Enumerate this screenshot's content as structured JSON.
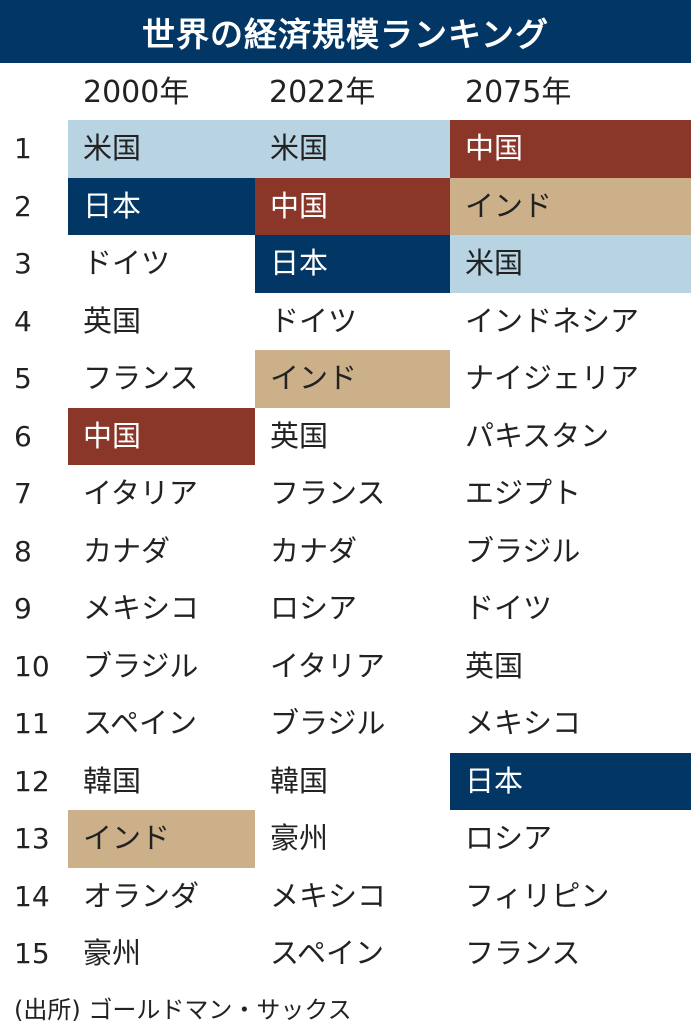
{
  "title": "世界の経済規模ランキング",
  "columns": [
    "2000年",
    "2022年",
    "2075年"
  ],
  "highlight_colors": {
    "米国": "#b8d4e3",
    "日本": "#023664",
    "中国": "#8a3628",
    "インド": "#ccb08a"
  },
  "highlight_text_colors": {
    "日本": "#ffffff",
    "中国": "#ffffff"
  },
  "rows": [
    {
      "rank": "1",
      "values": [
        "米国",
        "米国",
        "中国"
      ]
    },
    {
      "rank": "2",
      "values": [
        "日本",
        "中国",
        "インド"
      ]
    },
    {
      "rank": "3",
      "values": [
        "ドイツ",
        "日本",
        "米国"
      ]
    },
    {
      "rank": "4",
      "values": [
        "英国",
        "ドイツ",
        "インドネシア"
      ]
    },
    {
      "rank": "5",
      "values": [
        "フランス",
        "インド",
        "ナイジェリア"
      ]
    },
    {
      "rank": "6",
      "values": [
        "中国",
        "英国",
        "パキスタン"
      ]
    },
    {
      "rank": "7",
      "values": [
        "イタリア",
        "フランス",
        "エジプト"
      ]
    },
    {
      "rank": "8",
      "values": [
        "カナダ",
        "カナダ",
        "ブラジル"
      ]
    },
    {
      "rank": "9",
      "values": [
        "メキシコ",
        "ロシア",
        "ドイツ"
      ]
    },
    {
      "rank": "10",
      "values": [
        "ブラジル",
        "イタリア",
        "英国"
      ]
    },
    {
      "rank": "11",
      "values": [
        "スペイン",
        "ブラジル",
        "メキシコ"
      ]
    },
    {
      "rank": "12",
      "values": [
        "韓国",
        "韓国",
        "日本"
      ]
    },
    {
      "rank": "13",
      "values": [
        "インド",
        "豪州",
        "ロシア"
      ]
    },
    {
      "rank": "14",
      "values": [
        "オランダ",
        "メキシコ",
        "フィリピン"
      ]
    },
    {
      "rank": "15",
      "values": [
        "豪州",
        "スペイン",
        "フランス"
      ]
    }
  ],
  "source": "(出所) ゴールドマン・サックス"
}
